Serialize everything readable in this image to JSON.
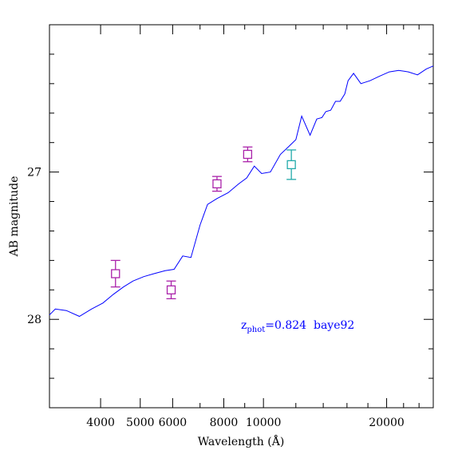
{
  "chart_data": {
    "type": "line",
    "xlabel": "Wavelength (Å)",
    "ylabel": "AB magnitude",
    "x_scale": "log",
    "y_inverted": true,
    "xlim": [
      3000,
      26000
    ],
    "ylim": [
      28.6,
      26.0
    ],
    "x_ticks": [
      {
        "value": 4000,
        "label": "4000"
      },
      {
        "value": 5000,
        "label": "5000"
      },
      {
        "value": 6000,
        "label": "6000"
      },
      {
        "value": 8000,
        "label": "8000"
      },
      {
        "value": 10000,
        "label": "10000"
      },
      {
        "value": 20000,
        "label": "20000"
      }
    ],
    "y_ticks": [
      {
        "value": 27,
        "label": "27"
      },
      {
        "value": 28,
        "label": "28"
      }
    ],
    "annotation": {
      "prefix": "z",
      "subscript": "phot",
      "suffix": "=0.824  baye92"
    },
    "colors": {
      "template": "#0000ff",
      "photometry": "#aa22aa",
      "photometry_alt": "#22aaaa",
      "annotation": "#0000ff"
    },
    "series": [
      {
        "type": "line",
        "x": [
          3000,
          3100,
          3300,
          3550,
          3800,
          4050,
          4300,
          4550,
          4800,
          5100,
          5400,
          5750,
          6050,
          6350,
          6650,
          7000,
          7300,
          7700,
          8200,
          8700,
          9100,
          9500,
          9900,
          10400,
          11000,
          11600,
          12000,
          12400,
          13000,
          13500,
          13900,
          14200,
          14600,
          15000,
          15400,
          15800,
          16100,
          16600,
          17300,
          18200,
          19200,
          20300,
          21400,
          22600,
          23800,
          25000,
          26000
        ],
        "y": [
          27.97,
          27.93,
          27.94,
          27.98,
          27.93,
          27.89,
          27.83,
          27.78,
          27.74,
          27.71,
          27.69,
          27.67,
          27.66,
          27.57,
          27.58,
          27.36,
          27.22,
          27.18,
          27.14,
          27.08,
          27.04,
          26.96,
          27.01,
          27.0,
          26.88,
          26.82,
          26.78,
          26.62,
          26.75,
          26.64,
          26.63,
          26.59,
          26.58,
          26.52,
          26.52,
          26.47,
          26.38,
          26.33,
          26.4,
          26.38,
          26.35,
          26.32,
          26.31,
          26.32,
          26.34,
          26.3,
          26.28
        ]
      },
      {
        "type": "points",
        "color_key": "photometry",
        "points": [
          {
            "x": 4350,
            "y": 27.69,
            "err": 0.09
          },
          {
            "x": 5950,
            "y": 27.8,
            "err": 0.06
          },
          {
            "x": 7700,
            "y": 27.08,
            "err": 0.05
          },
          {
            "x": 9150,
            "y": 26.88,
            "err": 0.05
          }
        ]
      },
      {
        "type": "points",
        "color_key": "photometry_alt",
        "points": [
          {
            "x": 11700,
            "y": 26.95,
            "err": 0.1
          }
        ]
      }
    ]
  }
}
